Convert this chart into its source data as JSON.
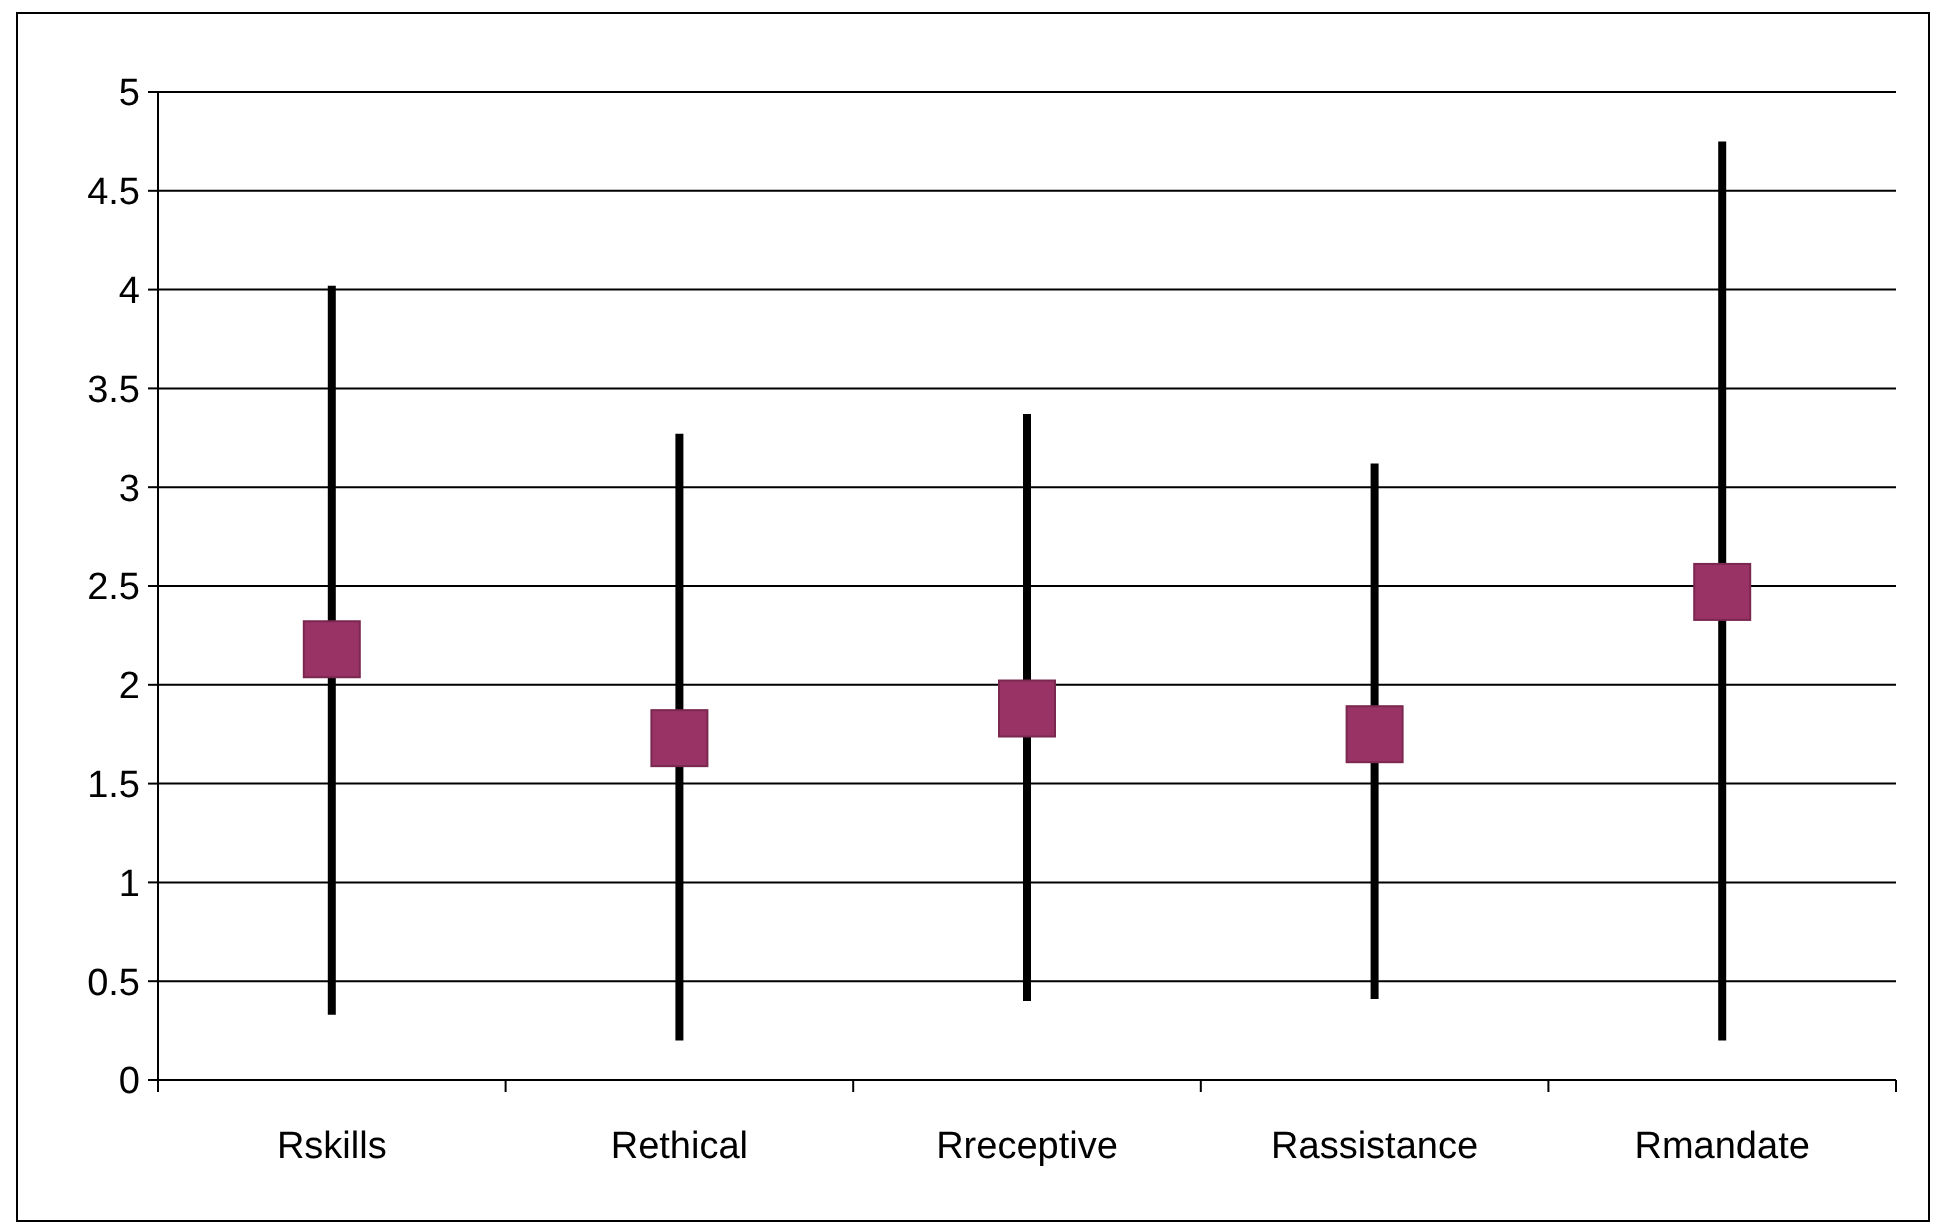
{
  "chart_data": {
    "type": "scatter",
    "categories": [
      "Rskills",
      "Rethical",
      "Rreceptive",
      "Rassistance",
      "Rmandate"
    ],
    "values": [
      2.18,
      1.73,
      1.88,
      1.75,
      2.47
    ],
    "errors": [
      [
        0.33,
        4.02
      ],
      [
        0.2,
        3.27
      ],
      [
        0.4,
        3.37
      ],
      [
        0.41,
        3.12
      ],
      [
        0.2,
        4.75
      ]
    ],
    "color": "#993366",
    "marker": "square",
    "ylim": [
      0,
      5
    ],
    "yticks": [
      0,
      0.5,
      1,
      1.5,
      2,
      2.5,
      3,
      3.5,
      4,
      4.5,
      5
    ],
    "grid": "y",
    "legend": false
  }
}
